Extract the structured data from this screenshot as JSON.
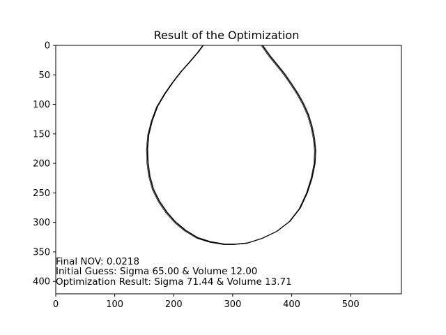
{
  "chart_data": {
    "type": "line",
    "title": "Result of the Optimization",
    "xlabel": "",
    "ylabel": "",
    "xlim": [
      0,
      586
    ],
    "ylim": [
      0,
      421
    ],
    "y_inverted": true,
    "grid": false,
    "x_ticks": [
      0,
      100,
      200,
      300,
      400,
      500
    ],
    "y_ticks": [
      0,
      50,
      100,
      150,
      200,
      250,
      300,
      350,
      400
    ],
    "line_color": "#000000",
    "series": [
      {
        "x": [
          250,
          241,
          229,
          213,
          199,
          185,
          172,
          163,
          157,
          155,
          156,
          159,
          165,
          175,
          188,
          203,
          220,
          240,
          262,
          286,
          303,
          325,
          350,
          375,
          397,
          414,
          426,
          434,
          439,
          440,
          438,
          434,
          428,
          420,
          410,
          399,
          387,
          375,
          362,
          350
        ],
        "y": [
          0,
          12,
          26,
          44,
          62,
          82,
          104,
          128,
          152,
          176,
          200,
          222,
          244,
          264,
          283,
          300,
          314,
          326,
          333,
          337,
          337,
          335,
          327,
          315,
          298,
          276,
          250,
          225,
          200,
          178,
          158,
          138,
          118,
          100,
          82,
          65,
          48,
          33,
          17,
          0
        ]
      }
    ],
    "annotations": [
      "Final NOV: 0.0218",
      "Initial Guess: Sigma 65.00 & Volume 12.00",
      "Optimization Result: Sigma 71.44 & Volume 13.71"
    ]
  }
}
